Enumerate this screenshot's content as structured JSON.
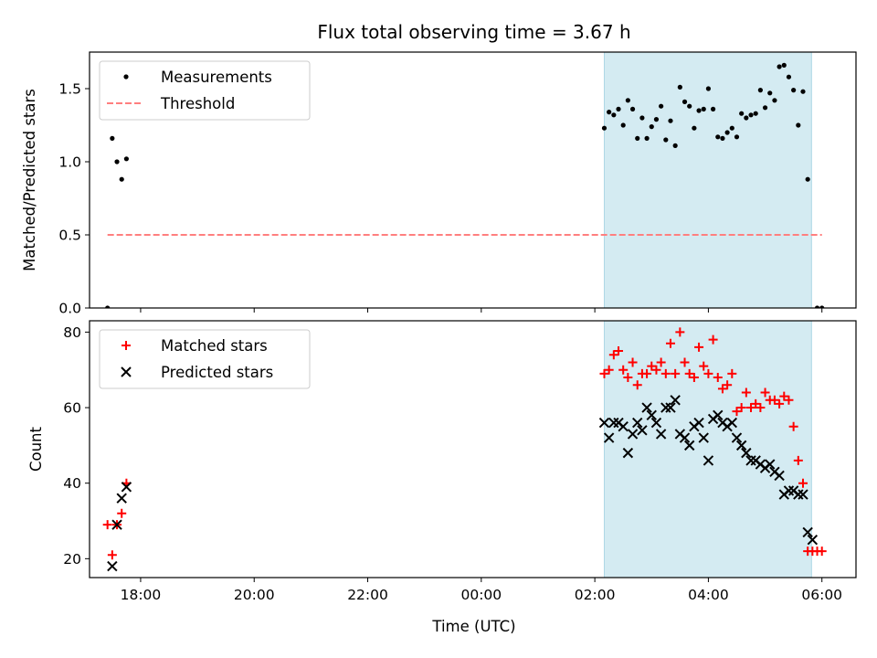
{
  "chart_data": [
    {
      "type": "scatter",
      "title": "Flux total observing time = 3.67 h",
      "xlabel": "",
      "ylabel": "Matched/Predicted stars",
      "xlim": [
        "17:06",
        "06:36"
      ],
      "ylim": [
        0,
        1.75
      ],
      "yticks": [
        {
          "value": 0,
          "label": "0.0"
        },
        {
          "value": 0.5,
          "label": "0.5"
        },
        {
          "value": 1.0,
          "label": "1.0"
        },
        {
          "value": 1.5,
          "label": "1.5"
        }
      ],
      "xticks": [
        "18:00",
        "20:00",
        "22:00",
        "00:00",
        "02:00",
        "04:00",
        "06:00"
      ],
      "show_xtick_labels": false,
      "grid": false,
      "legend": "upper-left",
      "shaded_interval": {
        "x": [
          "02:10",
          "05:49"
        ],
        "color": "#add8e6"
      },
      "series": [
        {
          "name": "Measurements",
          "marker": "dot",
          "color": "#000000",
          "points": [
            [
              "17:25",
              0.0
            ],
            [
              "17:30",
              1.16
            ],
            [
              "17:35",
              1.0
            ],
            [
              "17:40",
              0.88
            ],
            [
              "17:45",
              1.02
            ],
            [
              "02:10",
              1.23
            ],
            [
              "02:15",
              1.34
            ],
            [
              "02:20",
              1.32
            ],
            [
              "02:25",
              1.36
            ],
            [
              "02:30",
              1.25
            ],
            [
              "02:35",
              1.42
            ],
            [
              "02:40",
              1.36
            ],
            [
              "02:45",
              1.16
            ],
            [
              "02:50",
              1.3
            ],
            [
              "02:55",
              1.16
            ],
            [
              "03:00",
              1.24
            ],
            [
              "03:05",
              1.29
            ],
            [
              "03:10",
              1.38
            ],
            [
              "03:15",
              1.15
            ],
            [
              "03:20",
              1.28
            ],
            [
              "03:25",
              1.11
            ],
            [
              "03:30",
              1.51
            ],
            [
              "03:35",
              1.41
            ],
            [
              "03:40",
              1.38
            ],
            [
              "03:45",
              1.23
            ],
            [
              "03:50",
              1.35
            ],
            [
              "03:55",
              1.36
            ],
            [
              "04:00",
              1.5
            ],
            [
              "04:05",
              1.36
            ],
            [
              "04:10",
              1.17
            ],
            [
              "04:15",
              1.16
            ],
            [
              "04:20",
              1.2
            ],
            [
              "04:25",
              1.23
            ],
            [
              "04:30",
              1.17
            ],
            [
              "04:35",
              1.33
            ],
            [
              "04:40",
              1.3
            ],
            [
              "04:45",
              1.32
            ],
            [
              "04:50",
              1.33
            ],
            [
              "04:55",
              1.49
            ],
            [
              "05:00",
              1.37
            ],
            [
              "05:05",
              1.47
            ],
            [
              "05:10",
              1.42
            ],
            [
              "05:15",
              1.65
            ],
            [
              "05:20",
              1.66
            ],
            [
              "05:25",
              1.58
            ],
            [
              "05:30",
              1.49
            ],
            [
              "05:35",
              1.25
            ],
            [
              "05:40",
              1.48
            ],
            [
              "05:45",
              0.88
            ],
            [
              "05:55",
              0.0
            ],
            [
              "06:00",
              0.0
            ]
          ]
        },
        {
          "name": "Threshold",
          "marker": "dashed-line",
          "color": "#ff7f7f",
          "points": [
            [
              "17:25",
              0.5
            ],
            [
              "06:00",
              0.5
            ]
          ]
        }
      ]
    },
    {
      "type": "scatter",
      "title": "",
      "xlabel": "Time (UTC)",
      "ylabel": "Count",
      "xlim": [
        "17:06",
        "06:36"
      ],
      "ylim": [
        15,
        83
      ],
      "yticks": [
        {
          "value": 20,
          "label": "20"
        },
        {
          "value": 40,
          "label": "40"
        },
        {
          "value": 60,
          "label": "60"
        },
        {
          "value": 80,
          "label": "80"
        }
      ],
      "xticks": [
        "18:00",
        "20:00",
        "22:00",
        "00:00",
        "02:00",
        "04:00",
        "06:00"
      ],
      "show_xtick_labels": true,
      "grid": false,
      "legend": "upper-left",
      "shaded_interval": {
        "x": [
          "02:10",
          "05:49"
        ],
        "color": "#add8e6"
      },
      "series": [
        {
          "name": "Matched stars",
          "marker": "plus",
          "color": "#ff0000",
          "points": [
            [
              "17:25",
              29
            ],
            [
              "17:30",
              21
            ],
            [
              "17:35",
              29
            ],
            [
              "17:40",
              32
            ],
            [
              "17:45",
              40
            ],
            [
              "02:10",
              69
            ],
            [
              "02:15",
              70
            ],
            [
              "02:20",
              74
            ],
            [
              "02:25",
              75
            ],
            [
              "02:30",
              70
            ],
            [
              "02:35",
              68
            ],
            [
              "02:40",
              72
            ],
            [
              "02:45",
              66
            ],
            [
              "02:50",
              69
            ],
            [
              "02:55",
              69
            ],
            [
              "03:00",
              71
            ],
            [
              "03:05",
              70
            ],
            [
              "03:10",
              72
            ],
            [
              "03:15",
              69
            ],
            [
              "03:20",
              77
            ],
            [
              "03:25",
              69
            ],
            [
              "03:30",
              80
            ],
            [
              "03:35",
              72
            ],
            [
              "03:40",
              69
            ],
            [
              "03:45",
              68
            ],
            [
              "03:50",
              76
            ],
            [
              "03:55",
              71
            ],
            [
              "04:00",
              69
            ],
            [
              "04:05",
              78
            ],
            [
              "04:10",
              68
            ],
            [
              "04:15",
              65
            ],
            [
              "04:20",
              66
            ],
            [
              "04:25",
              69
            ],
            [
              "04:30",
              59
            ],
            [
              "04:35",
              60
            ],
            [
              "04:40",
              64
            ],
            [
              "04:45",
              60
            ],
            [
              "04:50",
              61
            ],
            [
              "04:55",
              60
            ],
            [
              "05:00",
              64
            ],
            [
              "05:05",
              62
            ],
            [
              "05:10",
              62
            ],
            [
              "05:15",
              61
            ],
            [
              "05:20",
              63
            ],
            [
              "05:25",
              62
            ],
            [
              "05:30",
              55
            ],
            [
              "05:35",
              46
            ],
            [
              "05:40",
              40
            ],
            [
              "05:45",
              22
            ],
            [
              "05:50",
              22
            ],
            [
              "05:55",
              22
            ],
            [
              "06:00",
              22
            ]
          ]
        },
        {
          "name": "Predicted stars",
          "marker": "x",
          "color": "#000000",
          "points": [
            [
              "17:30",
              18
            ],
            [
              "17:35",
              29
            ],
            [
              "17:40",
              36
            ],
            [
              "17:45",
              39
            ],
            [
              "02:10",
              56
            ],
            [
              "02:15",
              52
            ],
            [
              "02:20",
              56
            ],
            [
              "02:25",
              56
            ],
            [
              "02:30",
              55
            ],
            [
              "02:35",
              48
            ],
            [
              "02:40",
              53
            ],
            [
              "02:45",
              56
            ],
            [
              "02:50",
              54
            ],
            [
              "02:55",
              60
            ],
            [
              "03:00",
              58
            ],
            [
              "03:05",
              56
            ],
            [
              "03:10",
              53
            ],
            [
              "03:15",
              60
            ],
            [
              "03:20",
              60
            ],
            [
              "03:25",
              62
            ],
            [
              "03:30",
              53
            ],
            [
              "03:35",
              52
            ],
            [
              "03:40",
              50
            ],
            [
              "03:45",
              55
            ],
            [
              "03:50",
              56
            ],
            [
              "03:55",
              52
            ],
            [
              "04:00",
              46
            ],
            [
              "04:05",
              57
            ],
            [
              "04:10",
              58
            ],
            [
              "04:15",
              56
            ],
            [
              "04:20",
              55
            ],
            [
              "04:25",
              56
            ],
            [
              "04:30",
              52
            ],
            [
              "04:35",
              50
            ],
            [
              "04:40",
              48
            ],
            [
              "04:45",
              46
            ],
            [
              "04:50",
              46
            ],
            [
              "04:55",
              45
            ],
            [
              "05:00",
              44
            ],
            [
              "05:05",
              45
            ],
            [
              "05:10",
              43
            ],
            [
              "05:15",
              42
            ],
            [
              "05:20",
              37
            ],
            [
              "05:25",
              38
            ],
            [
              "05:30",
              38
            ],
            [
              "05:35",
              37
            ],
            [
              "05:40",
              37
            ],
            [
              "05:45",
              27
            ],
            [
              "05:50",
              25
            ]
          ]
        }
      ]
    }
  ]
}
